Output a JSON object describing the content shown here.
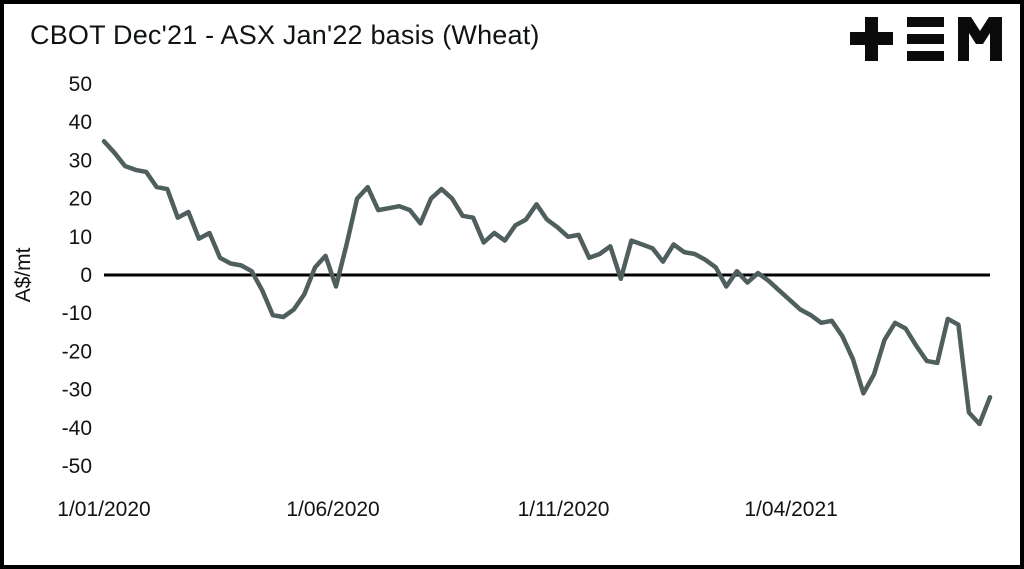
{
  "header": {
    "logo_icon": "tem-logo-icon",
    "logo_color": "#0b0b0b"
  },
  "chart_data": {
    "type": "line",
    "title": "CBOT Dec'21 - ASX Jan'22 basis (Wheat)",
    "xlabel": "",
    "ylabel": "A$/mt",
    "ylim": [
      -50,
      50
    ],
    "y_ticks": [
      50,
      40,
      30,
      20,
      10,
      0,
      -10,
      -20,
      -30,
      -40,
      -50
    ],
    "x_ticks": [
      {
        "label": "1/01/2020",
        "day": 0
      },
      {
        "label": "1/06/2020",
        "day": 152
      },
      {
        "label": "1/11/2020",
        "day": 305
      },
      {
        "label": "1/04/2021",
        "day": 456
      }
    ],
    "x_range_days": [
      0,
      588
    ],
    "x_days_step": 7,
    "grid": false,
    "zero_line": true,
    "legend": "none",
    "series": [
      {
        "name": "CBOT Dec'21 - ASX Jan'22 basis (A$/mt)",
        "color": "#4f5f5d",
        "values": [
          35,
          32,
          28.5,
          27.5,
          27,
          23,
          22.5,
          15,
          16.5,
          9.5,
          11,
          4.5,
          3,
          2.5,
          1,
          -4,
          -10.5,
          -11,
          -9,
          -5,
          2,
          5,
          -3,
          8,
          20,
          23,
          17,
          17.5,
          18,
          17,
          13.5,
          20,
          22.5,
          20,
          15.5,
          15,
          8.5,
          11,
          9,
          13,
          14.5,
          18.5,
          14.5,
          12.5,
          10,
          10.5,
          4.5,
          5.5,
          7.5,
          -1,
          9,
          8,
          7,
          3.5,
          8,
          6,
          5.5,
          4,
          2,
          -3,
          1,
          -2,
          0.5,
          -1.5,
          -4,
          -6.5,
          -9,
          -10.5,
          -12.5,
          -12,
          -16,
          -22,
          -31,
          -26,
          -17,
          -12.5,
          -14,
          -18.5,
          -22.5,
          -23,
          -11.5,
          -13,
          -36,
          -39,
          -32
        ]
      }
    ]
  }
}
